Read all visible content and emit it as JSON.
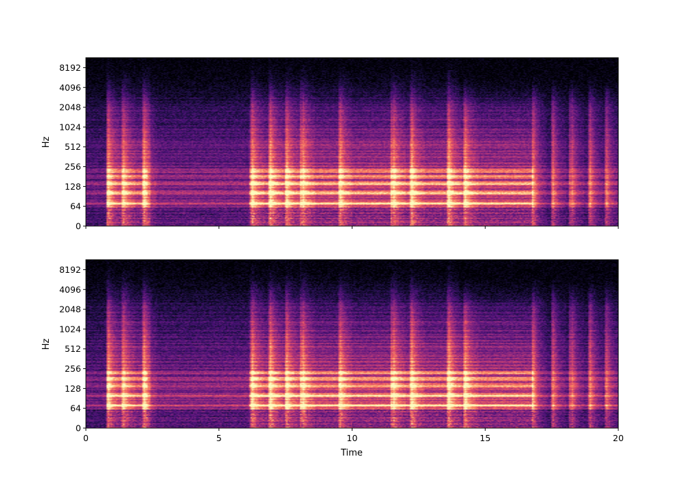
{
  "chart_data": [
    {
      "type": "heatmap",
      "panel": "top",
      "title": "",
      "xlabel": "",
      "ylabel": "Hz",
      "xlim": [
        0,
        20
      ],
      "x_ticks": [
        0,
        5,
        10,
        15,
        20
      ],
      "x_tick_labels_visible": false,
      "y_scale": "log2",
      "y_ticks": [
        0,
        64,
        128,
        256,
        512,
        1024,
        2048,
        4096,
        8192
      ],
      "y_tick_labels": [
        "0",
        "64",
        "128",
        "256",
        "512",
        "1024",
        "2048",
        "4096",
        "8192"
      ],
      "colormap": "magma",
      "grid": false,
      "onsets_s": [
        0.8,
        1.35,
        2.15,
        6.2,
        6.9,
        7.5,
        8.1,
        9.5,
        11.5,
        12.2,
        13.6,
        14.2,
        16.8,
        17.5,
        18.2,
        18.9,
        19.5
      ],
      "sustained_bands_hz": [
        70,
        100,
        140,
        180,
        220
      ]
    },
    {
      "type": "heatmap",
      "panel": "bottom",
      "title": "",
      "xlabel": "Time",
      "ylabel": "Hz",
      "xlim": [
        0,
        20
      ],
      "x_ticks": [
        0,
        5,
        10,
        15,
        20
      ],
      "x_tick_labels": [
        "0",
        "5",
        "10",
        "15",
        "20"
      ],
      "y_scale": "log2",
      "y_ticks": [
        0,
        64,
        128,
        256,
        512,
        1024,
        2048,
        4096,
        8192
      ],
      "y_tick_labels": [
        "0",
        "64",
        "128",
        "256",
        "512",
        "1024",
        "2048",
        "4096",
        "8192"
      ],
      "colormap": "magma",
      "grid": false,
      "onsets_s": [
        0.8,
        1.35,
        2.15,
        6.2,
        6.9,
        7.5,
        8.1,
        9.5,
        11.5,
        12.2,
        13.6,
        14.2,
        16.8,
        17.5,
        18.2,
        18.9,
        19.5
      ],
      "sustained_bands_hz": [
        70,
        100,
        140,
        180,
        220
      ]
    }
  ]
}
